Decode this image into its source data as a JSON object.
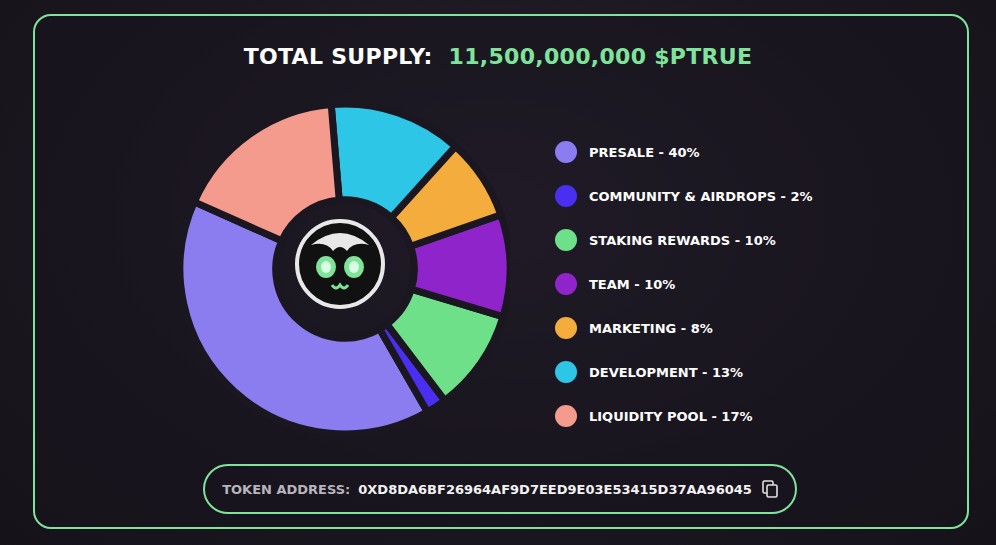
{
  "chart_data": {
    "type": "pie",
    "title": "TOTAL SUPPLY:",
    "subtitle": "11,500,000,000 $PTRUE",
    "categories": [
      "PRESALE - 40%",
      "COMMUNITY & AIRDROPS - 2%",
      "STAKING REWARDS - 10%",
      "TEAM - 10%",
      "MARKETING - 8%",
      "DEVELOPMENT - 13%",
      "LIQUIDITY POOL - 17%"
    ],
    "values": [
      40,
      2,
      10,
      10,
      8,
      13,
      17
    ],
    "colors": [
      "#8b7cf0",
      "#4b2ff0",
      "#6ee08a",
      "#8e24c9",
      "#f4ac3c",
      "#2ec6e6",
      "#f49b8e"
    ],
    "legend": "right",
    "data_labels": false,
    "token_address": {
      "label": "TOKEN ADDRESS:",
      "value": "0XD8DA6BF26964AF9D7EED9E03E53415D37AA96045"
    }
  }
}
